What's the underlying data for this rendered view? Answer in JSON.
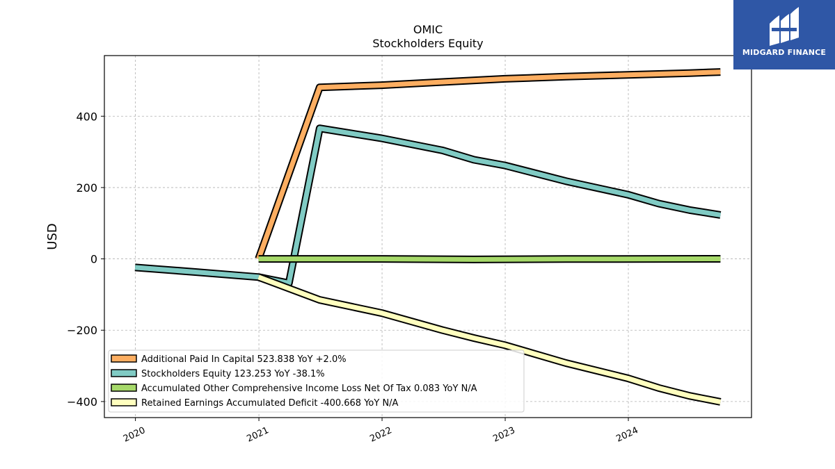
{
  "chart_data": {
    "type": "line",
    "title": "OMIC",
    "subtitle": "Stockholders  Equity",
    "ylabel": "USD",
    "xlabel": "",
    "x_axis": "date",
    "xlim": [
      "2019-10-01",
      "2024-12-31"
    ],
    "ylim": [
      -445,
      570
    ],
    "x_ticks": [
      "2020",
      "2021",
      "2022",
      "2023",
      "2024"
    ],
    "y_ticks": [
      -400,
      -200,
      0,
      200,
      400
    ],
    "grid": true,
    "legend_position": "lower-left",
    "series": [
      {
        "name": "Additional Paid In Capital  523.838 YoY +2.0%",
        "color": "#fdae61",
        "points": [
          [
            "2020-12-31",
            0
          ],
          [
            "2021-06-30",
            481
          ],
          [
            "2021-12-31",
            487
          ],
          [
            "2022-06-30",
            496
          ],
          [
            "2022-12-31",
            505
          ],
          [
            "2023-06-30",
            511
          ],
          [
            "2023-12-31",
            516
          ],
          [
            "2024-06-30",
            521
          ],
          [
            "2024-09-30",
            524
          ]
        ]
      },
      {
        "name": "Stockholders Equity  123.253 YoY -38.1%",
        "color": "#80cbc4",
        "points": [
          [
            "2019-12-31",
            -24
          ],
          [
            "2020-06-30",
            -37
          ],
          [
            "2020-12-31",
            -51
          ],
          [
            "2021-03-31",
            -68
          ],
          [
            "2021-06-30",
            366
          ],
          [
            "2021-12-31",
            338
          ],
          [
            "2022-06-30",
            304
          ],
          [
            "2022-09-30",
            278
          ],
          [
            "2022-12-31",
            262
          ],
          [
            "2023-06-30",
            218
          ],
          [
            "2023-12-31",
            180
          ],
          [
            "2024-03-31",
            155
          ],
          [
            "2024-06-30",
            137
          ],
          [
            "2024-09-30",
            123
          ]
        ]
      },
      {
        "name": "Accumulated Other Comprehensive Income Loss Net Of Tax  0.083 YoY N/A",
        "color": "#a6d96a",
        "points": [
          [
            "2020-12-31",
            0
          ],
          [
            "2021-12-31",
            0
          ],
          [
            "2022-09-30",
            -1.5
          ],
          [
            "2023-06-30",
            -0.5
          ],
          [
            "2024-09-30",
            0.083
          ]
        ]
      },
      {
        "name": "Retained Earnings Accumulated Deficit  -400.668 YoY N/A",
        "color": "#ffffbf",
        "points": [
          [
            "2020-12-31",
            -51
          ],
          [
            "2021-06-30",
            -115
          ],
          [
            "2021-12-31",
            -152
          ],
          [
            "2022-06-30",
            -200
          ],
          [
            "2022-09-30",
            -222
          ],
          [
            "2022-12-31",
            -242
          ],
          [
            "2023-06-30",
            -292
          ],
          [
            "2023-12-31",
            -335
          ],
          [
            "2024-03-31",
            -362
          ],
          [
            "2024-06-30",
            -384
          ],
          [
            "2024-09-30",
            -401
          ]
        ]
      }
    ]
  },
  "logo": {
    "name": "MIDGARD FINANCE",
    "color": "#2f57a6"
  }
}
